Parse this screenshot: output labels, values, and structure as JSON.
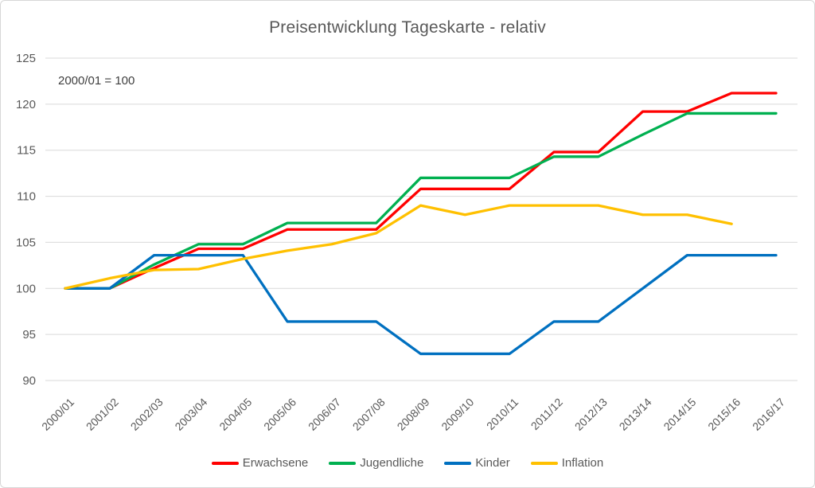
{
  "title": "Preisentwicklung Tageskarte - relativ",
  "annotation": "2000/01 = 100",
  "colors": {
    "title_text": "#595959",
    "axis_text": "#595959",
    "annotation_text": "#3f3f3f",
    "gridline": "#d9d9d9",
    "canvas_border": "#d7d7d7",
    "series_red": "#ff0000",
    "series_green": "#00b050",
    "series_blue": "#0070c0",
    "series_yellow": "#ffc000"
  },
  "chart_data": {
    "type": "line",
    "title": "Preisentwicklung Tageskarte - relativ",
    "annotation": "2000/01 = 100",
    "xlabel": "",
    "ylabel": "",
    "ylim": [
      90,
      125
    ],
    "ytick_step": 5,
    "grid": "horizontal",
    "legend_position": "bottom",
    "categories": [
      "2000/01",
      "2001/02",
      "2002/03",
      "2003/04",
      "2004/05",
      "2005/06",
      "2006/07",
      "2007/08",
      "2008/09",
      "2009/10",
      "2010/11",
      "2011/12",
      "2012/13",
      "2013/14",
      "2014/15",
      "2015/16",
      "2016/17"
    ],
    "series": [
      {
        "name": "Erwachsene",
        "color": "#ff0000",
        "values": [
          100,
          100,
          102.2,
          104.3,
          104.3,
          106.4,
          106.4,
          106.4,
          110.8,
          110.8,
          110.8,
          114.8,
          114.8,
          119.2,
          119.2,
          121.2,
          121.2
        ]
      },
      {
        "name": "Jugendliche",
        "color": "#00b050",
        "values": [
          100,
          100,
          102.6,
          104.8,
          104.8,
          107.1,
          107.1,
          107.1,
          112.0,
          112.0,
          112.0,
          114.3,
          114.3,
          116.7,
          119.0,
          119.0,
          119.0
        ]
      },
      {
        "name": "Kinder",
        "color": "#0070c0",
        "values": [
          100,
          100,
          103.6,
          103.6,
          103.6,
          96.4,
          96.4,
          96.4,
          92.9,
          92.9,
          92.9,
          96.4,
          96.4,
          100,
          103.6,
          103.6,
          103.6
        ]
      },
      {
        "name": "Inflation",
        "color": "#ffc000",
        "values": [
          100,
          101.1,
          102.0,
          102.1,
          103.2,
          104.1,
          104.8,
          106.0,
          109.0,
          108.0,
          109.0,
          109.0,
          109.0,
          108.0,
          108.0,
          107.0,
          null
        ]
      }
    ]
  }
}
